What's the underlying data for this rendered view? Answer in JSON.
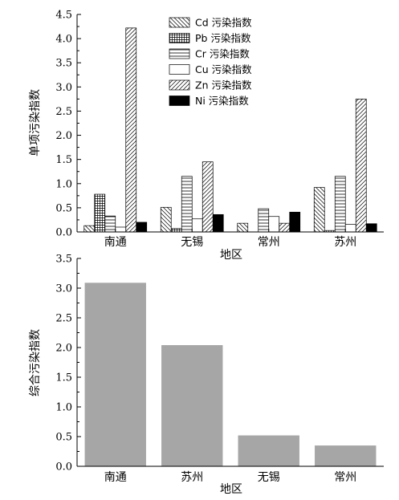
{
  "chart_data": [
    {
      "type": "bar",
      "categories": [
        "南通",
        "无锡",
        "常州",
        "苏州"
      ],
      "series": [
        {
          "name": "Cd 污染指数",
          "values": [
            0.13,
            0.51,
            0.18,
            0.92
          ],
          "pattern": "diag-back"
        },
        {
          "name": "Pb 污染指数",
          "values": [
            0.78,
            0.07,
            0.0,
            0.03
          ],
          "pattern": "grid"
        },
        {
          "name": "Cr 污染指数",
          "values": [
            0.33,
            1.15,
            0.48,
            1.15
          ],
          "pattern": "hlines"
        },
        {
          "name": "Cu 污染指数",
          "values": [
            0.1,
            0.27,
            0.32,
            0.16
          ],
          "pattern": "blank"
        },
        {
          "name": "Zn 污染指数",
          "values": [
            4.22,
            1.45,
            0.18,
            2.75
          ],
          "pattern": "diag-fwd"
        },
        {
          "name": "Ni 污染指数",
          "values": [
            0.2,
            0.36,
            0.41,
            0.17
          ],
          "pattern": "solid"
        }
      ],
      "title": "",
      "xlabel": "地区",
      "ylabel": "单项污染指数",
      "ylim": [
        0,
        4.5
      ],
      "yticks": [
        "0.0",
        "0.5",
        "1.0",
        "1.5",
        "2.0",
        "2.5",
        "3.0",
        "3.5",
        "4.0",
        "4.5"
      ],
      "legend_position": "top-center",
      "grid": false
    },
    {
      "type": "bar",
      "categories": [
        "南通",
        "苏州",
        "无锡",
        "常州"
      ],
      "values": [
        3.09,
        2.04,
        0.52,
        0.35
      ],
      "color": "#a6a6a6",
      "title": "",
      "xlabel": "地区",
      "ylabel": "综合污染指数",
      "ylim": [
        0,
        3.5
      ],
      "yticks": [
        "0.0",
        "0.5",
        "1.0",
        "1.5",
        "2.0",
        "2.5",
        "3.0",
        "3.5"
      ],
      "grid": false
    }
  ]
}
